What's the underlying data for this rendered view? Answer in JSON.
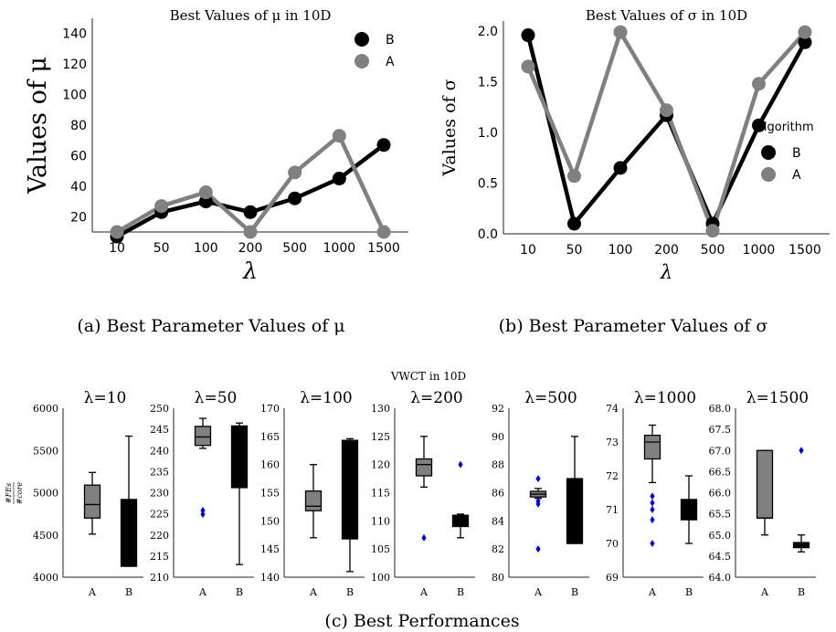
{
  "colors": {
    "A": "#808080",
    "B": "#000000",
    "outlier": "#0000cc",
    "axis": "#222222"
  },
  "chart_data": [
    {
      "id": "a",
      "type": "line",
      "title": "Best Values of μ in 10D",
      "xlabel": "λ",
      "ylabel": "Values of μ",
      "categories": [
        "10",
        "50",
        "100",
        "200",
        "500",
        "1000",
        "1500"
      ],
      "ylim": [
        10,
        150
      ],
      "yticks": [
        "20",
        "40",
        "60",
        "80",
        "100",
        "120",
        "140"
      ],
      "legend_position": "top-right",
      "legend_title": "",
      "series": [
        {
          "name": "B",
          "values": [
            7,
            23,
            30,
            23,
            32,
            45,
            67
          ]
        },
        {
          "name": "A",
          "values": [
            10,
            27,
            36,
            10,
            49,
            73,
            10
          ]
        }
      ],
      "caption": "(a) Best Parameter Values of μ"
    },
    {
      "id": "b",
      "type": "line",
      "title": "Best Values of σ in 10D",
      "xlabel": "λ",
      "ylabel": "Values of σ",
      "categories": [
        "10",
        "50",
        "100",
        "200",
        "500",
        "1000",
        "1500"
      ],
      "ylim": [
        0,
        2.1
      ],
      "yticks": [
        "0.0",
        "0.5",
        "1.0",
        "1.5",
        "2.0"
      ],
      "legend_position": "center-right",
      "legend_title": "Algorithm",
      "series": [
        {
          "name": "B",
          "values": [
            1.96,
            0.1,
            0.65,
            1.17,
            0.1,
            1.07,
            1.89
          ]
        },
        {
          "name": "A",
          "values": [
            1.65,
            0.57,
            1.99,
            1.22,
            0.03,
            1.48,
            1.99
          ]
        }
      ],
      "caption": "(b) Best Parameter Values of σ"
    },
    {
      "id": "c",
      "type": "box",
      "title": "VWCT in 10D",
      "ylabel": "#FEs / #core",
      "caption": "(c) Best Performances",
      "categories": [
        "A",
        "B"
      ],
      "panels": [
        {
          "title": "λ=10",
          "ylim": [
            4000,
            6000
          ],
          "yticks": [
            "4000",
            "4500",
            "5000",
            "5500",
            "6000"
          ],
          "boxes": [
            {
              "name": "A",
              "whislo": 4510,
              "q1": 4700,
              "med": 4860,
              "q3": 5090,
              "whishi": 5240,
              "fliers": []
            },
            {
              "name": "B",
              "whislo": 4130,
              "q1": 4130,
              "med": 4130,
              "q3": 4920,
              "whishi": 5670,
              "fliers": []
            }
          ]
        },
        {
          "title": "λ=50",
          "ylim": [
            210,
            250
          ],
          "yticks": [
            "210",
            "215",
            "220",
            "225",
            "230",
            "235",
            "240",
            "245",
            "250"
          ],
          "boxes": [
            {
              "name": "A",
              "whislo": 240.5,
              "q1": 241.2,
              "med": 243.2,
              "q3": 245.7,
              "whishi": 247.6,
              "fliers": [
                225.8,
                224.9
              ]
            },
            {
              "name": "B",
              "whislo": 213,
              "q1": 231.2,
              "med": 245.5,
              "q3": 245.8,
              "whishi": 246.5,
              "fliers": []
            }
          ]
        },
        {
          "title": "λ=100",
          "ylim": [
            140,
            170
          ],
          "yticks": [
            "140",
            "145",
            "150",
            "155",
            "160",
            "165",
            "170"
          ],
          "boxes": [
            {
              "name": "A",
              "whislo": 147,
              "q1": 151.8,
              "med": 152.6,
              "q3": 155.3,
              "whishi": 160,
              "fliers": []
            },
            {
              "name": "B",
              "whislo": 141,
              "q1": 146.8,
              "med": 164.2,
              "q3": 164.3,
              "whishi": 164.6,
              "fliers": []
            }
          ]
        },
        {
          "title": "λ=200",
          "ylim": [
            100,
            130
          ],
          "yticks": [
            "100",
            "105",
            "110",
            "115",
            "120",
            "125",
            "130"
          ],
          "boxes": [
            {
              "name": "A",
              "whislo": 116,
              "q1": 118,
              "med": 120,
              "q3": 121,
              "whishi": 125,
              "fliers": [
                107
              ]
            },
            {
              "name": "B",
              "whislo": 107,
              "q1": 109,
              "med": 110,
              "q3": 111,
              "whishi": 111.2,
              "fliers": [
                120
              ]
            }
          ]
        },
        {
          "title": "λ=500",
          "ylim": [
            80,
            92
          ],
          "yticks": [
            "80",
            "82",
            "84",
            "86",
            "88",
            "90",
            "92"
          ],
          "boxes": [
            {
              "name": "A",
              "whislo": 85.6,
              "q1": 85.7,
              "med": 85.9,
              "q3": 86.1,
              "whishi": 86.3,
              "fliers": [
                87,
                85.4,
                85.2,
                82
              ]
            },
            {
              "name": "B",
              "whislo": 82.4,
              "q1": 82.4,
              "med": 82.4,
              "q3": 87,
              "whishi": 90,
              "fliers": []
            }
          ]
        },
        {
          "title": "λ=1000",
          "ylim": [
            69,
            74
          ],
          "yticks": [
            "69",
            "70",
            "71",
            "72",
            "73",
            "74"
          ],
          "boxes": [
            {
              "name": "A",
              "whislo": 71.8,
              "q1": 72.5,
              "med": 73,
              "q3": 73.2,
              "whishi": 73.5,
              "fliers": [
                71.4,
                71.2,
                71,
                70.7,
                70
              ]
            },
            {
              "name": "B",
              "whislo": 70,
              "q1": 70.7,
              "med": 70.8,
              "q3": 71.3,
              "whishi": 72,
              "fliers": []
            }
          ]
        },
        {
          "title": "λ=1500",
          "ylim": [
            64,
            68
          ],
          "yticks": [
            "64.0",
            "64.5",
            "65.0",
            "65.5",
            "66.0",
            "66.5",
            "67.0",
            "67.5",
            "68.0"
          ],
          "boxes": [
            {
              "name": "A",
              "whislo": 65,
              "q1": 65.4,
              "med": 65.4,
              "q3": 67,
              "whishi": 67,
              "fliers": []
            },
            {
              "name": "B",
              "whislo": 64.6,
              "q1": 64.7,
              "med": 64.75,
              "q3": 64.82,
              "whishi": 65,
              "fliers": [
                67
              ]
            }
          ]
        }
      ]
    }
  ]
}
